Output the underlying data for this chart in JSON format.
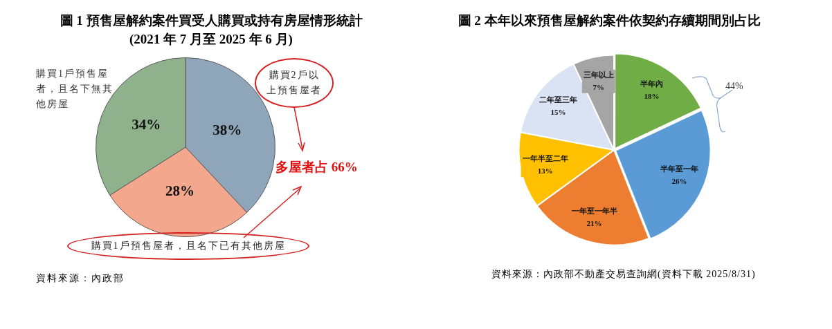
{
  "chart_data": [
    {
      "type": "pie",
      "title": "圖 1  預售屋解約案件買受人購買或持有房屋情形統計(2021 年 7 月至 2025 年 6 月)",
      "categories": [
        "購買2戶以上預售屋者",
        "購買1戶預售屋者，且名下已有其他房屋",
        "購買1戶預售屋者，且名下無其他房屋"
      ],
      "values": [
        38,
        28,
        34
      ],
      "colors": [
        "#8ea5ba",
        "#f3a78c",
        "#8fb28c"
      ],
      "value_labels": [
        "38%",
        "28%",
        "34%"
      ],
      "annotations": [
        "多屋者占 66%",
        "資料來源：內政部"
      ]
    },
    {
      "type": "pie",
      "title": "圖 2  本年以來預售屋解約案件依契約存續期間別占比",
      "categories": [
        "半年內",
        "半年至一年",
        "一年至一年半",
        "一年半至二年",
        "二年至三年",
        "三年以上"
      ],
      "values": [
        18,
        26,
        21,
        13,
        15,
        7
      ],
      "colors": [
        "#70ad47",
        "#5b9bd5",
        "#ed7d31",
        "#ffc000",
        "#dae3f3",
        "#a5a5a5"
      ],
      "value_labels": [
        "18%",
        "26%",
        "21%",
        "13%",
        "15%",
        "7%"
      ],
      "annotations": [
        "44%",
        "資料來源：內政部不動產交易查詢網(資料下載 2025/8/31)"
      ]
    }
  ]
}
